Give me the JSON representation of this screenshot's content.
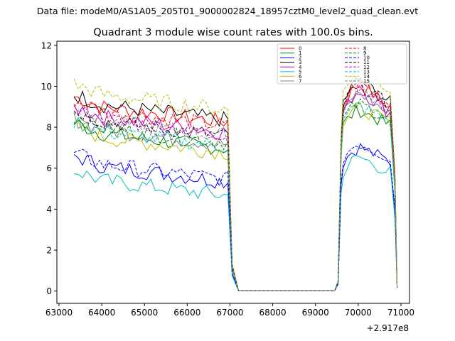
{
  "chart_data": {
    "type": "line",
    "suptitle": "Data file: modeM0/AS1A05_205T01_9000002824_18957cztM0_level2_quad_clean.evt",
    "title": "Quadrant 3 module wise count rates with 100.0s bins.",
    "xlabel": "",
    "ylabel": "",
    "offset_text": "+2.917e8",
    "xlim": [
      62950,
      71200
    ],
    "ylim": [
      -0.6,
      12.2
    ],
    "xticks": [
      63000,
      64000,
      65000,
      66000,
      67000,
      68000,
      69000,
      70000,
      71000
    ],
    "xtick_labels": [
      "63000",
      "64000",
      "65000",
      "66000",
      "67000",
      "68000",
      "69000",
      "70000",
      "71000"
    ],
    "yticks": [
      0,
      2,
      4,
      6,
      8,
      10,
      12
    ],
    "ytick_labels": [
      "0",
      "2",
      "4",
      "6",
      "8",
      "10",
      "12"
    ],
    "legend_position": "top-right",
    "gap": {
      "start": 67200,
      "end": 69450
    },
    "seg1": {
      "start": 63350,
      "end": 66950
    },
    "seg2": {
      "start": 69650,
      "end": 70800
    },
    "end_value": 0.15,
    "series": [
      {
        "name": "0",
        "color": "#ff0000",
        "dash": false,
        "level1": 8.6,
        "level2": 9.6,
        "step1": 8.8,
        "step2": 9.2
      },
      {
        "name": "1",
        "color": "#008000",
        "dash": false,
        "level1": 7.3,
        "level2": 8.7,
        "step1": 7.8,
        "step2": 7.9
      },
      {
        "name": "2",
        "color": "#0000ff",
        "dash": false,
        "level1": 5.7,
        "level2": 6.9,
        "step1": 5.0,
        "step2": 6.5
      },
      {
        "name": "3",
        "color": "#000000",
        "dash": false,
        "level1": 8.7,
        "level2": 9.8,
        "step1": 9.0,
        "step2": 9.4
      },
      {
        "name": "4",
        "color": "#bf00bf",
        "dash": false,
        "level1": 8.1,
        "level2": 9.3,
        "step1": 8.4,
        "step2": 8.7
      },
      {
        "name": "5",
        "color": "#00bfbf",
        "dash": false,
        "level1": 5.0,
        "level2": 6.4,
        "step1": 4.5,
        "step2": 5.8
      },
      {
        "name": "6",
        "color": "#bfbf00",
        "dash": false,
        "level1": 7.1,
        "level2": 8.8,
        "step1": 6.9,
        "step2": 8.0
      },
      {
        "name": "7",
        "color": "#808080",
        "dash": false,
        "level1": 7.5,
        "level2": 9.2,
        "step1": 7.9,
        "step2": 8.4
      },
      {
        "name": "8",
        "color": "#ff0000",
        "dash": true,
        "level1": 8.4,
        "level2": 9.7,
        "step1": 8.9,
        "step2": 9.0
      },
      {
        "name": "9",
        "color": "#008000",
        "dash": true,
        "level1": 7.6,
        "level2": 9.0,
        "step1": 7.3,
        "step2": 8.2
      },
      {
        "name": "10",
        "color": "#0000ff",
        "dash": true,
        "level1": 5.8,
        "level2": 7.1,
        "step1": 5.6,
        "step2": 6.8
      },
      {
        "name": "11",
        "color": "#000000",
        "dash": true,
        "level1": 7.9,
        "level2": 9.6,
        "step1": 8.0,
        "step2": 9.0
      },
      {
        "name": "12",
        "color": "#bf00bf",
        "dash": true,
        "level1": 8.0,
        "level2": 9.4,
        "step1": 8.6,
        "step2": 8.8
      },
      {
        "name": "13",
        "color": "#00bfbf",
        "dash": true,
        "level1": 7.4,
        "level2": 8.9,
        "step1": 7.8,
        "step2": 8.3
      },
      {
        "name": "14",
        "color": "#bfbf00",
        "dash": true,
        "level1": 9.2,
        "level2": 10.4,
        "step1": 9.7,
        "step2": 9.8
      },
      {
        "name": "15",
        "color": "#808080",
        "dash": true,
        "level1": 7.9,
        "level2": 9.4,
        "step1": 8.2,
        "step2": 8.9
      }
    ]
  }
}
